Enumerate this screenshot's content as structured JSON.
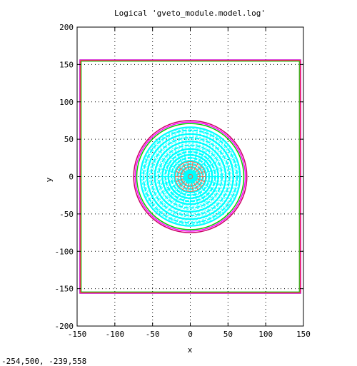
{
  "chart_data": {
    "type": "scatter",
    "title": "Logical 'gveto_module.model.log'",
    "xlabel": "x",
    "ylabel": "y",
    "xlim": [
      -150,
      150
    ],
    "ylim": [
      -200,
      200
    ],
    "grid": true,
    "xticks": [
      "-150",
      "-100",
      "-50",
      "0",
      "50",
      "100",
      "150"
    ],
    "yticks": [
      "200",
      "150",
      "100",
      "50",
      "0",
      "-50",
      "-100",
      "-150",
      "-200"
    ],
    "shapes": {
      "outer_frames": [
        {
          "kind": "rect",
          "x": [
            -145.5,
            145.5
          ],
          "y": [
            -155.3,
            155.3
          ],
          "color": "#ff0000"
        },
        {
          "kind": "rect",
          "x": [
            -144.5,
            144.5
          ],
          "y": [
            -154.3,
            154.3
          ],
          "color": "#00c000"
        },
        {
          "kind": "rect",
          "x": [
            -146.5,
            146.5
          ],
          "y": [
            -156.3,
            156.3
          ],
          "color": "#cc00cc"
        }
      ],
      "outer_circles": [
        {
          "r": 75,
          "color": "#cc0066"
        },
        {
          "r": 73,
          "color": "#ff00ff"
        },
        {
          "r": 71,
          "color": "#00cc00"
        }
      ],
      "ring_radii": [
        66,
        62,
        57,
        52,
        47,
        42,
        37,
        33,
        29,
        25,
        21,
        17,
        13,
        9
      ],
      "ring_color": "#00ffff",
      "inner_grid_color": "#ff6040",
      "inner_grid_radius": 20
    }
  },
  "status": {
    "coordinates": "-254,500, -239,558"
  }
}
